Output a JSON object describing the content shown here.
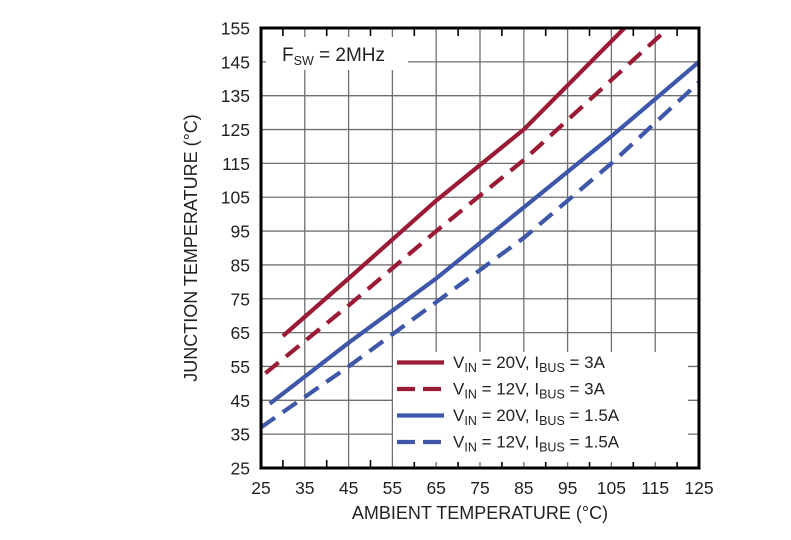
{
  "chart_data": {
    "type": "line",
    "title": "",
    "annotation": {
      "label": "FSW = 2MHz",
      "parts": [
        {
          "t": "F",
          "sub": false
        },
        {
          "t": "SW",
          "sub": true
        },
        {
          "t": " = 2MHz",
          "sub": false
        }
      ]
    },
    "xlabel": "AMBIENT TEMPERATURE (°C)",
    "ylabel": "JUNCTION TEMPERATURE (°C)",
    "xlim": [
      25,
      125
    ],
    "ylim": [
      25,
      155
    ],
    "xticks": [
      25,
      35,
      45,
      55,
      65,
      75,
      85,
      95,
      105,
      115,
      125
    ],
    "yticks": [
      25,
      35,
      45,
      55,
      65,
      75,
      85,
      95,
      105,
      115,
      125,
      135,
      145,
      155
    ],
    "grid": true,
    "legend_position": "inside-lower-right",
    "series": [
      {
        "name": "vin-20v-ibus-3a",
        "label": "VIN = 20V, IBUS = 3A",
        "parts": [
          {
            "t": "V",
            "sub": false
          },
          {
            "t": "IN",
            "sub": true
          },
          {
            "t": " = 20V, I",
            "sub": false
          },
          {
            "t": "BUS",
            "sub": true
          },
          {
            "t": " = 3A",
            "sub": false
          }
        ],
        "color": "#9b1b36",
        "dashed": false,
        "points": [
          [
            30,
            64
          ],
          [
            45,
            81
          ],
          [
            65,
            104
          ],
          [
            85,
            125
          ],
          [
            108,
            155
          ]
        ]
      },
      {
        "name": "vin-12v-ibus-3a",
        "label": "VIN = 12V, IBUS = 3A",
        "parts": [
          {
            "t": "V",
            "sub": false
          },
          {
            "t": "IN",
            "sub": true
          },
          {
            "t": " = 12V, I",
            "sub": false
          },
          {
            "t": "BUS",
            "sub": true
          },
          {
            "t": " = 3A",
            "sub": false
          }
        ],
        "color": "#9b1b36",
        "dashed": true,
        "points": [
          [
            26,
            53
          ],
          [
            45,
            73
          ],
          [
            65,
            95
          ],
          [
            85,
            116
          ],
          [
            118,
            155
          ]
        ]
      },
      {
        "name": "vin-20v-ibus-1p5a",
        "label": "VIN = 20V, IBUS = 1.5A",
        "parts": [
          {
            "t": "V",
            "sub": false
          },
          {
            "t": "IN",
            "sub": true
          },
          {
            "t": " = 20V, I",
            "sub": false
          },
          {
            "t": "BUS",
            "sub": true
          },
          {
            "t": " = 1.5A",
            "sub": false
          }
        ],
        "color": "#3e57a8",
        "dashed": false,
        "points": [
          [
            27,
            44
          ],
          [
            45,
            62
          ],
          [
            65,
            81
          ],
          [
            85,
            102
          ],
          [
            105,
            123
          ],
          [
            125,
            145
          ]
        ]
      },
      {
        "name": "vin-12v-ibus-1p5a",
        "label": "VIN = 12V, IBUS = 1.5A",
        "parts": [
          {
            "t": "V",
            "sub": false
          },
          {
            "t": "IN",
            "sub": true
          },
          {
            "t": " = 12V, I",
            "sub": false
          },
          {
            "t": "BUS",
            "sub": true
          },
          {
            "t": " = 1.5A",
            "sub": false
          }
        ],
        "color": "#3e57a8",
        "dashed": true,
        "points": [
          [
            25,
            37
          ],
          [
            45,
            55
          ],
          [
            65,
            74
          ],
          [
            85,
            93
          ],
          [
            105,
            115
          ],
          [
            125,
            139
          ]
        ]
      }
    ],
    "colors": {
      "red": "#9b1b36",
      "blue": "#3e57a8",
      "grid": "#6e6e71",
      "frame": "#000000",
      "text": "#231f20",
      "background": "#ffffff"
    }
  }
}
